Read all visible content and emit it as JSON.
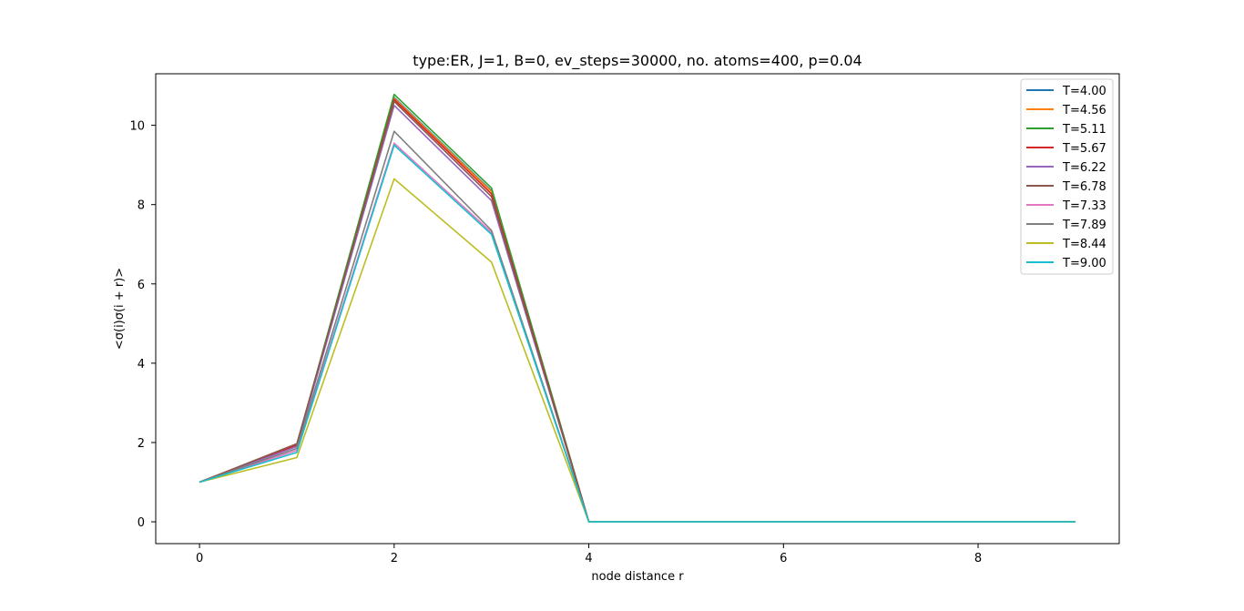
{
  "chart_data": {
    "type": "line",
    "title": "type:ER, J=1, B=0, ev_steps=30000, no. atoms=400, p=0.04",
    "xlabel": "node distance r",
    "ylabel": "<σ(i)σ(i + r)>",
    "xlim": [
      -0.45,
      9.45
    ],
    "ylim": [
      -0.55,
      11.3
    ],
    "xticks": [
      0,
      2,
      4,
      6,
      8
    ],
    "yticks": [
      0,
      2,
      4,
      6,
      8,
      10
    ],
    "grid": false,
    "legend_position": "top-right",
    "x": [
      0,
      1,
      2,
      3,
      4,
      5,
      6,
      7,
      8,
      9
    ],
    "series": [
      {
        "name": "T=4.00",
        "color": "#1f77b4",
        "values": [
          1.0,
          1.93,
          10.7,
          8.35,
          0.0,
          0.0,
          0.0,
          0.0,
          0.0,
          0.0
        ]
      },
      {
        "name": "T=4.56",
        "color": "#ff7f0e",
        "values": [
          1.0,
          1.92,
          10.68,
          8.33,
          0.0,
          0.0,
          0.0,
          0.0,
          0.0,
          0.0
        ]
      },
      {
        "name": "T=5.11",
        "color": "#2ca02c",
        "values": [
          1.0,
          1.95,
          10.78,
          8.42,
          0.0,
          0.0,
          0.0,
          0.0,
          0.0,
          0.0
        ]
      },
      {
        "name": "T=5.67",
        "color": "#d62728",
        "values": [
          1.0,
          1.93,
          10.65,
          8.27,
          0.0,
          0.0,
          0.0,
          0.0,
          0.0,
          0.0
        ]
      },
      {
        "name": "T=6.22",
        "color": "#9467bd",
        "values": [
          1.0,
          1.9,
          10.5,
          8.1,
          0.0,
          0.0,
          0.0,
          0.0,
          0.0,
          0.0
        ]
      },
      {
        "name": "T=6.78",
        "color": "#8c564b",
        "values": [
          1.0,
          1.97,
          10.6,
          8.2,
          0.0,
          0.0,
          0.0,
          0.0,
          0.0,
          0.0
        ]
      },
      {
        "name": "T=7.33",
        "color": "#e377c2",
        "values": [
          1.0,
          1.8,
          9.55,
          7.3,
          0.0,
          0.0,
          0.0,
          0.0,
          0.0,
          0.0
        ]
      },
      {
        "name": "T=7.89",
        "color": "#7f7f7f",
        "values": [
          1.0,
          1.85,
          9.85,
          7.35,
          0.0,
          0.0,
          0.0,
          0.0,
          0.0,
          0.0
        ]
      },
      {
        "name": "T=8.44",
        "color": "#bcbd22",
        "values": [
          1.0,
          1.62,
          8.65,
          6.55,
          0.0,
          0.0,
          0.0,
          0.0,
          0.0,
          0.0
        ]
      },
      {
        "name": "T=9.00",
        "color": "#17becf",
        "values": [
          1.0,
          1.75,
          9.5,
          7.25,
          0.0,
          0.0,
          0.0,
          0.0,
          0.0,
          0.0
        ]
      }
    ]
  }
}
